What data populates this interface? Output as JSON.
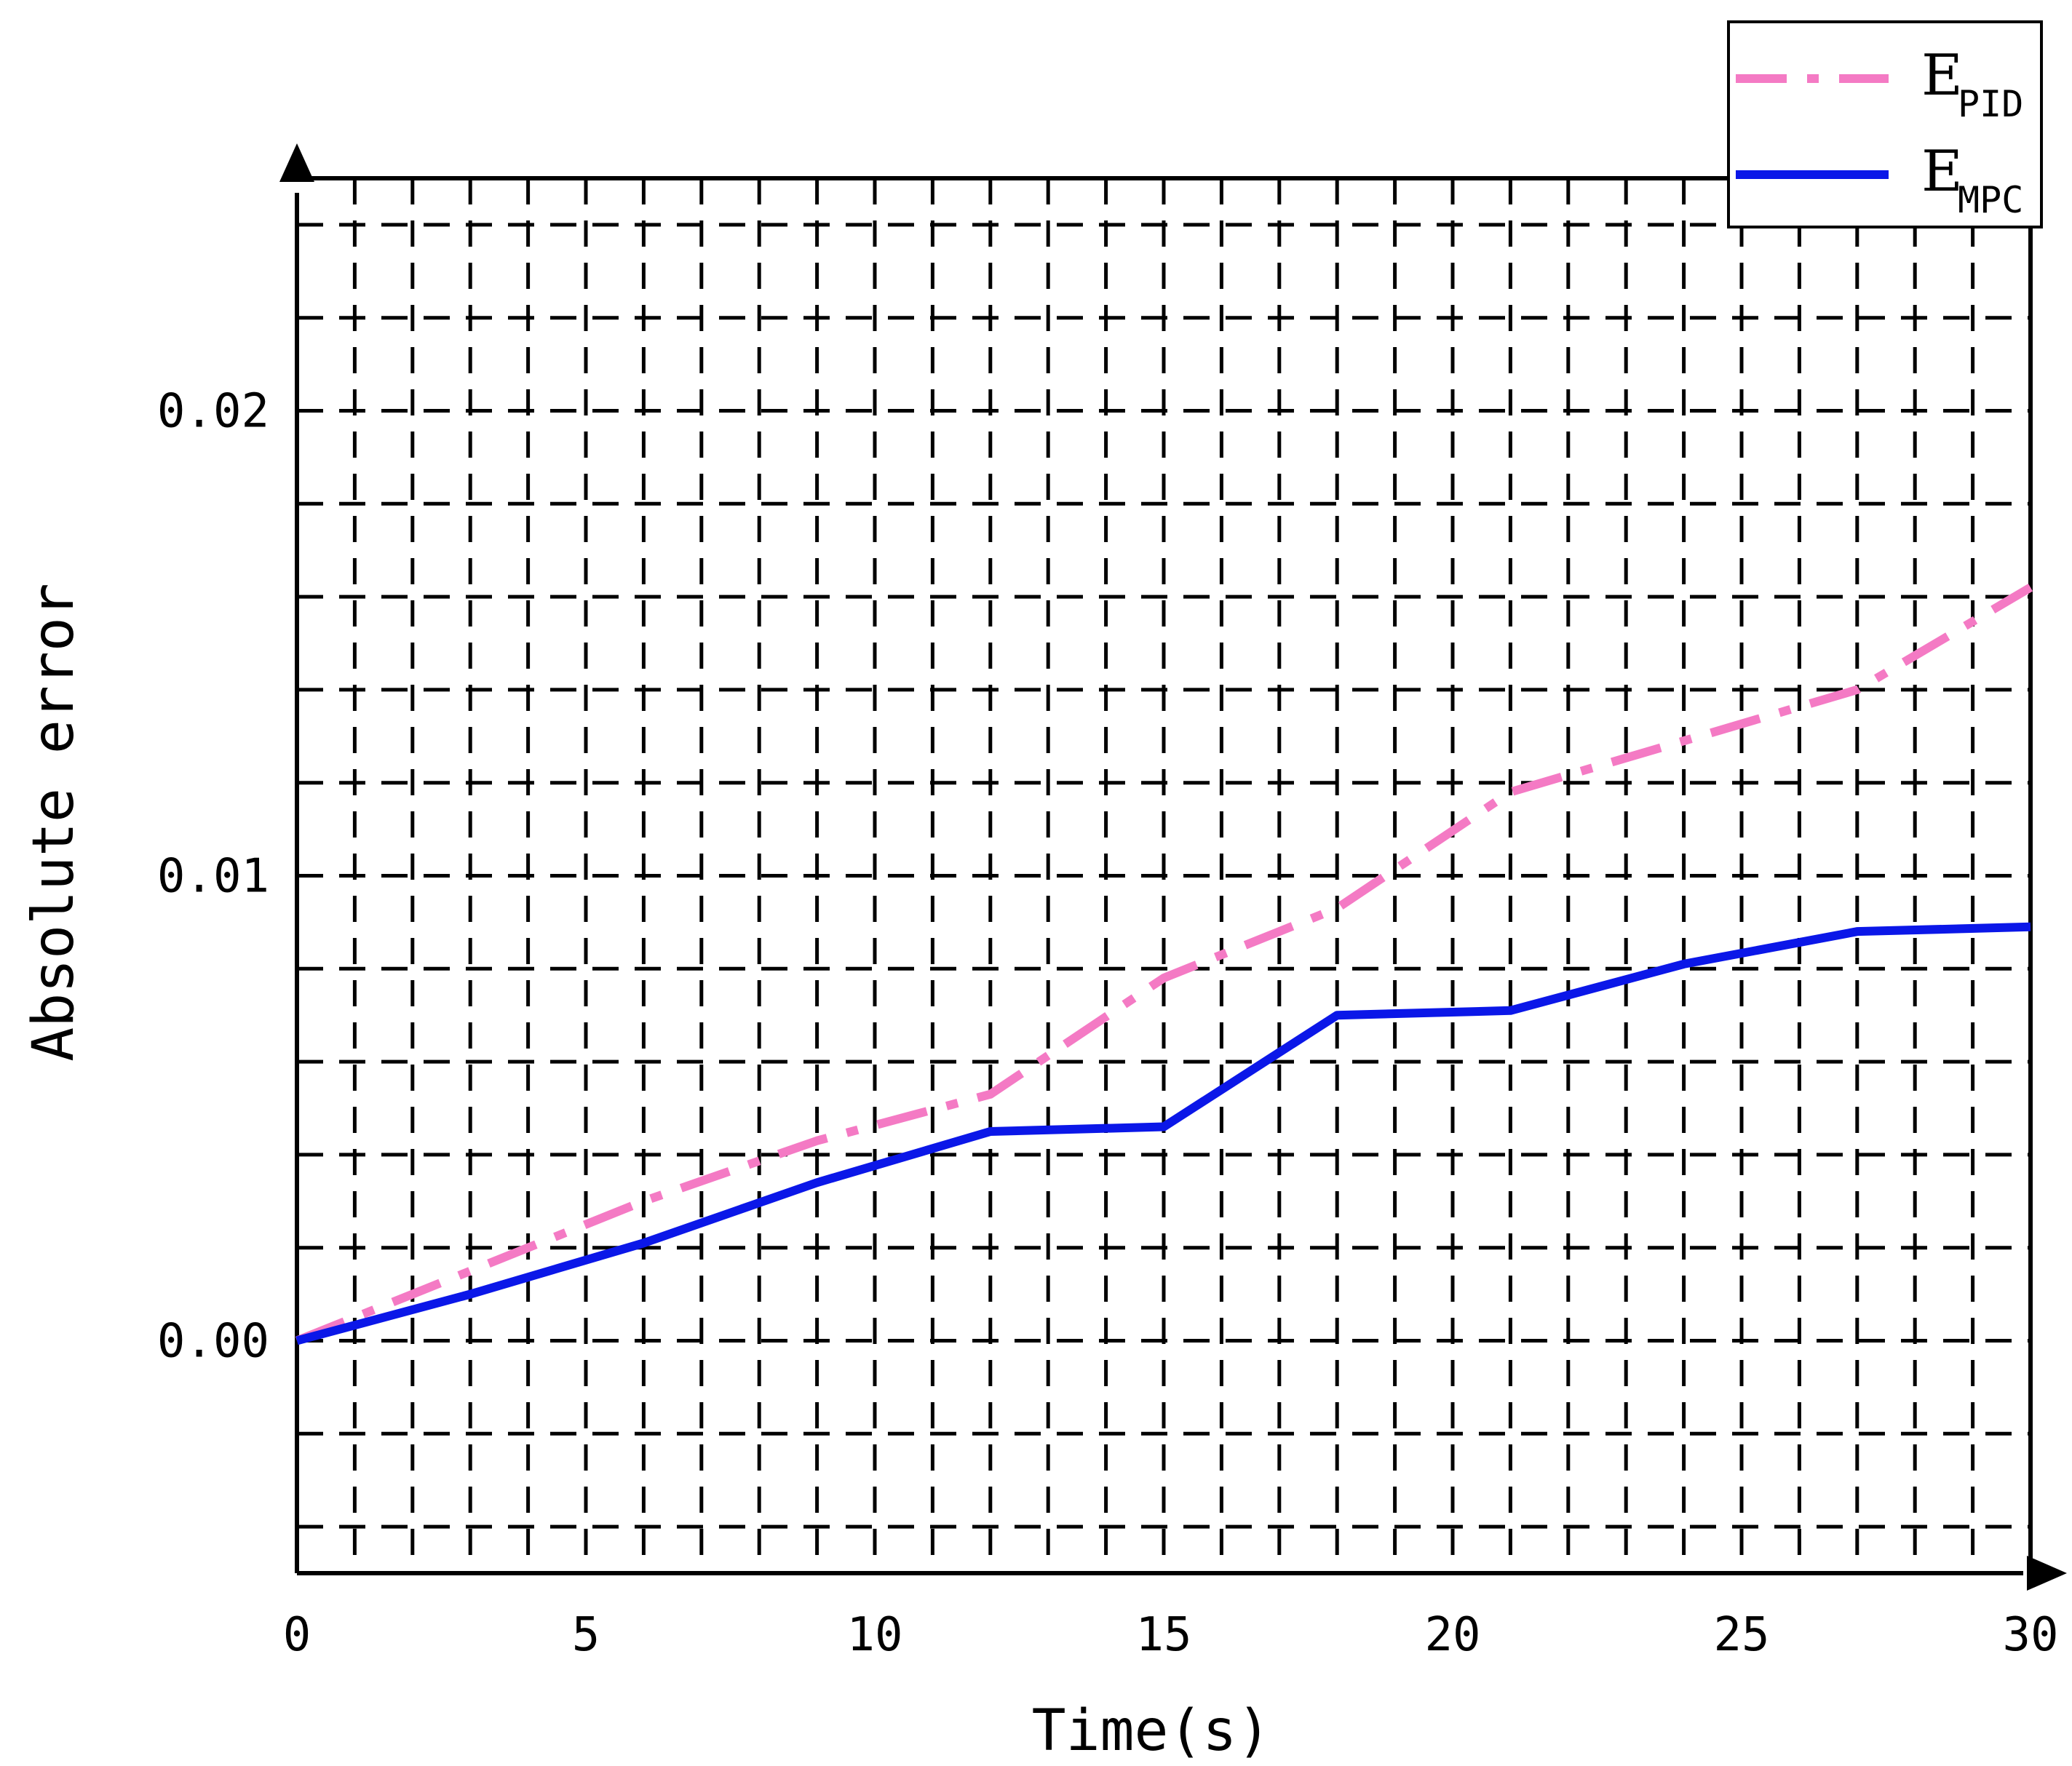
{
  "chart_data": {
    "type": "line",
    "title": "",
    "xlabel": "Time(s)",
    "ylabel": "Absolute error",
    "xlim": [
      0,
      30
    ],
    "ylim": [
      -0.005,
      0.025
    ],
    "x_ticks": [
      0,
      5,
      10,
      15,
      20,
      25,
      30
    ],
    "x_tick_labels": [
      "0",
      "5",
      "10",
      "15",
      "20",
      "25",
      "30"
    ],
    "y_ticks": [
      0.0,
      0.01,
      0.02
    ],
    "y_tick_labels": [
      "0.00",
      "0.01",
      "0.02"
    ],
    "grid": true,
    "legend_position": "top-right",
    "series": [
      {
        "name": "E_PID",
        "label_main": "E",
        "label_sub": "PID",
        "color": "#f47ac4",
        "style": "dash-dot",
        "x": [
          0,
          3,
          6,
          9,
          12,
          15,
          18,
          21,
          24,
          27,
          30
        ],
        "y": [
          0.0,
          0.0015,
          0.003,
          0.0043,
          0.0053,
          0.0078,
          0.0093,
          0.0118,
          0.0129,
          0.014,
          0.0162
        ]
      },
      {
        "name": "E_MPC",
        "label_main": "E",
        "label_sub": "MPC",
        "color": "#0b17e8",
        "style": "solid",
        "x": [
          0,
          3,
          6,
          9,
          12,
          15,
          18,
          21,
          24,
          27,
          30
        ],
        "y": [
          0.0,
          0.001,
          0.0021,
          0.0034,
          0.0045,
          0.0046,
          0.007,
          0.0071,
          0.0081,
          0.0088,
          0.0089
        ]
      }
    ]
  }
}
